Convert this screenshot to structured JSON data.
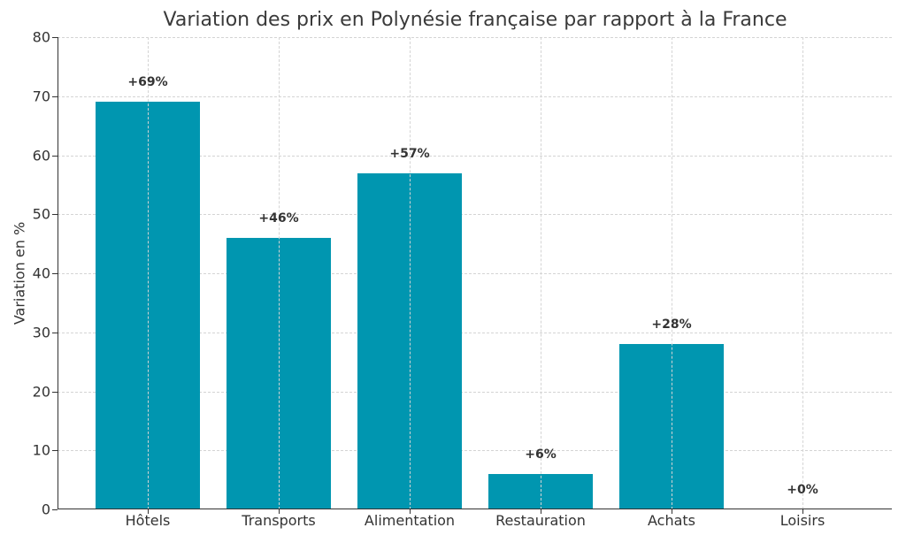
{
  "chart_data": {
    "type": "bar",
    "title": "Variation des prix en Polynésie française par rapport à la France",
    "xlabel": "",
    "ylabel": "Variation en %",
    "ylim": [
      0,
      80
    ],
    "yticks": [
      0,
      10,
      20,
      30,
      40,
      50,
      60,
      70,
      80
    ],
    "grid": true,
    "categories": [
      "Hôtels",
      "Transports",
      "Alimentation",
      "Restauration",
      "Achats",
      "Loisirs"
    ],
    "values": [
      69,
      46,
      57,
      6,
      28,
      0
    ],
    "data_labels": [
      "+69%",
      "+46%",
      "+57%",
      "+6%",
      "+28%",
      "+0%"
    ],
    "bar_color": "#0096b0"
  }
}
